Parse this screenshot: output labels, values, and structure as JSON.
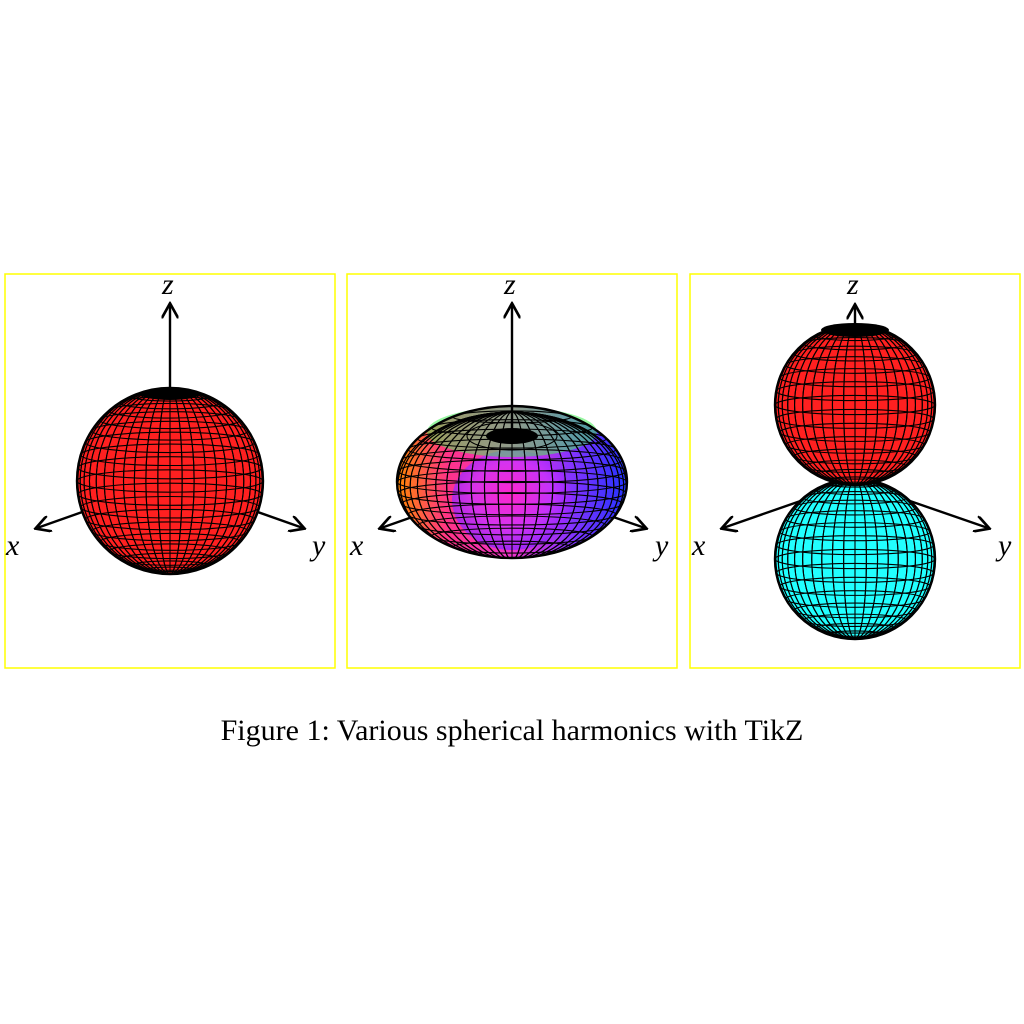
{
  "figure": {
    "caption": "Figure 1: Various spherical harmonics with TikZ",
    "frame_color": "#ffff00",
    "panels": [
      {
        "name": "panel-sphere",
        "shape": "sphere",
        "colors": [
          "#ff2020"
        ],
        "axes": {
          "x": "x",
          "y": "y",
          "z": "z"
        }
      },
      {
        "name": "panel-torus",
        "shape": "torus",
        "colors": [
          "#ff8800",
          "#ff22cc",
          "#7722ff",
          "#2233ff",
          "#33ff44"
        ],
        "axes": {
          "x": "x",
          "y": "y",
          "z": "z"
        }
      },
      {
        "name": "panel-dumbbell",
        "shape": "dumbbell",
        "colors": [
          "#ff2020",
          "#22ffff"
        ],
        "axes": {
          "x": "x",
          "y": "y",
          "z": "z"
        }
      }
    ]
  }
}
